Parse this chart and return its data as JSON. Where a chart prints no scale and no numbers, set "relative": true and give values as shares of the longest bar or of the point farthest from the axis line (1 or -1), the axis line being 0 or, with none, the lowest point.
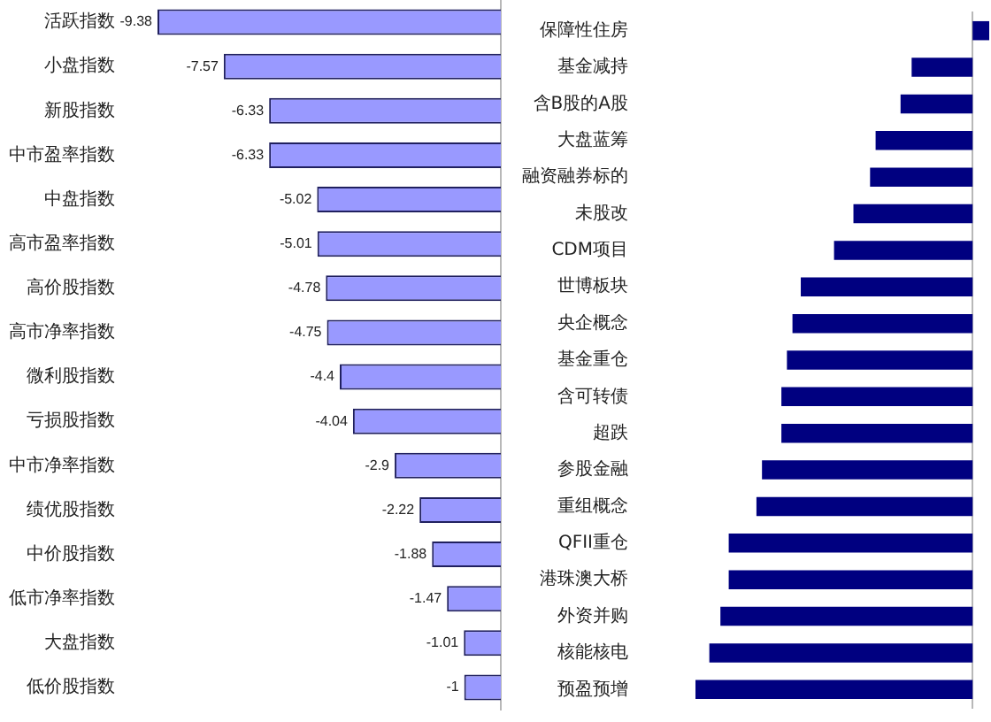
{
  "chart_data": [
    {
      "type": "bar",
      "orientation": "horizontal",
      "tick_labels": "y",
      "data_labels": true,
      "color": "#9999ff",
      "categories": [
        "活跃指数",
        "小盘指数",
        "新股指数",
        "中市盈率指数",
        "中盘指数",
        "高市盈率指数",
        "高价股指数",
        "高市净率指数",
        "微利股指数",
        "亏损股指数",
        "中市净率指数",
        "绩优股指数",
        "中价股指数",
        "低市净率指数",
        "大盘指数",
        "低价股指数"
      ],
      "values": [
        -9.38,
        -7.57,
        -6.33,
        -6.33,
        -5.02,
        -5.01,
        -4.78,
        -4.75,
        -4.4,
        -4.04,
        -2.9,
        -2.22,
        -1.88,
        -1.47,
        -1.01,
        -1
      ]
    },
    {
      "type": "bar",
      "orientation": "horizontal",
      "relative": true,
      "color": "#000080",
      "categories": [
        "保障性住房",
        "基金减持",
        "含B股的A股",
        "大盘蓝筹",
        "融资融券标的",
        "未股改",
        "CDM项目",
        "世博板块",
        "央企概念",
        "基金重仓",
        "含可转债",
        "超跌",
        "参股金融",
        "重组概念",
        "QFII重仓",
        "港珠澳大桥",
        "外资并购",
        "核能核电",
        "预盈预增"
      ],
      "values": [
        0.06,
        -0.22,
        -0.26,
        -0.35,
        -0.37,
        -0.43,
        -0.5,
        -0.62,
        -0.65,
        -0.67,
        -0.69,
        -0.69,
        -0.76,
        -0.78,
        -0.88,
        -0.88,
        -0.91,
        -0.95,
        -1
      ]
    }
  ]
}
